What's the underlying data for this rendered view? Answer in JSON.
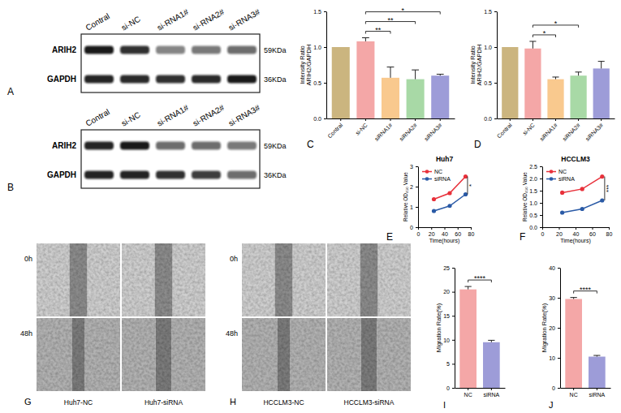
{
  "blots": [
    {
      "panel": "A",
      "lanes": [
        "Contral",
        "si-NC",
        "si-RNA1#",
        "si-RNA2#",
        "si-RNA3#"
      ],
      "rows": [
        {
          "protein": "ARIH2",
          "size": "59KDa"
        },
        {
          "protein": "GAPDH",
          "size": "36KDa"
        }
      ]
    },
    {
      "panel": "B",
      "lanes": [
        "Contral",
        "si-NC",
        "si-RNA1#",
        "si-RNA2#",
        "si-RNA3#"
      ],
      "rows": [
        {
          "protein": "ARIH2",
          "size": "59KDa"
        },
        {
          "protein": "GAPDH",
          "size": "36KDa"
        }
      ]
    }
  ],
  "chart_data": [
    {
      "type": "bar",
      "panel": "C",
      "y_label": "Intensity Ratio ARIH2/GAPDH",
      "categories": [
        "Contral",
        "si-NC",
        "siRNA1#",
        "siRNA2#",
        "siRNA3#"
      ],
      "values": [
        1.0,
        1.08,
        0.57,
        0.55,
        0.6
      ],
      "errors": [
        null,
        0.05,
        0.15,
        0.13,
        0.02
      ],
      "colors": [
        "#cbb57f",
        "#f4a7a7",
        "#f9c98e",
        "#a8d9a6",
        "#9d9cd8"
      ],
      "ylim": [
        0,
        1.5
      ],
      "yticks": [
        {
          "value": 0,
          "label": "0.0"
        },
        0.5,
        {
          "value": 1,
          "label": "1.0"
        },
        1.5
      ],
      "comparisons": [
        {
          "from": "si-NC",
          "to": "siRNA1#",
          "label": "**"
        },
        {
          "from": "si-NC",
          "to": "siRNA2#",
          "label": "**"
        },
        {
          "from": "si-NC",
          "to": "siRNA3#",
          "label": "*"
        }
      ]
    },
    {
      "type": "bar",
      "panel": "D",
      "y_label": "Intensity Ratio ARIH2/GAPDH",
      "categories": [
        "Contral",
        "si-NC",
        "siRNA1#",
        "siRNA2#",
        "siRNA3#"
      ],
      "values": [
        1.0,
        0.98,
        0.55,
        0.6,
        0.7
      ],
      "errors": [
        null,
        0.1,
        0.03,
        0.05,
        0.1
      ],
      "colors": [
        "#cbb57f",
        "#f4a7a7",
        "#f9c98e",
        "#a8d9a6",
        "#9d9cd8"
      ],
      "ylim": [
        0,
        1.5
      ],
      "yticks": [
        {
          "value": 0,
          "label": "0.0"
        },
        0.5,
        {
          "value": 1,
          "label": "1.0"
        },
        1.5
      ],
      "comparisons": [
        {
          "from": "si-NC",
          "to": "siRNA1#",
          "label": "*"
        },
        {
          "from": "si-NC",
          "to": "siRNA2#",
          "label": "*"
        }
      ]
    },
    {
      "type": "line",
      "panel": "E",
      "title": "Huh7",
      "x_label": "Time(hours)",
      "y_label": "Relative OD₄₅₀ Value",
      "x": [
        24,
        48,
        72
      ],
      "series": [
        {
          "name": "NC",
          "color": "#e8313b",
          "values": [
            1.38,
            1.68,
            2.5
          ]
        },
        {
          "name": "siRNA",
          "color": "#2a5aa6",
          "values": [
            0.8,
            1.05,
            1.62
          ]
        }
      ],
      "xlim": [
        0,
        80
      ],
      "xticks": [
        0,
        20,
        40,
        60,
        80
      ],
      "ylim": [
        0,
        3
      ],
      "yticks": [
        0,
        1,
        2,
        3
      ],
      "legend": "upper left",
      "marker": "circle",
      "annotations": [
        {
          "text": "*",
          "x": 75
        }
      ]
    },
    {
      "type": "line",
      "panel": "F",
      "title": "HCCLM3",
      "x_label": "Time(hours)",
      "y_label": "Relative OD₄₅₀ Value",
      "x": [
        24,
        48,
        72
      ],
      "series": [
        {
          "name": "NC",
          "color": "#e8313b",
          "values": [
            1.42,
            1.57,
            2.08
          ]
        },
        {
          "name": "siRNA",
          "color": "#2a5aa6",
          "values": [
            0.6,
            0.75,
            1.1
          ]
        }
      ],
      "xlim": [
        0,
        80
      ],
      "xticks": [
        0,
        20,
        40,
        60,
        80
      ],
      "ylim": [
        0,
        2.5
      ],
      "yticks": [
        {
          "value": 0,
          "label": "0.0"
        },
        0.5,
        {
          "value": 1,
          "label": "1.0"
        },
        1.5,
        {
          "value": 2,
          "label": "2.0"
        },
        2.5
      ],
      "legend": "upper left",
      "marker": "circle",
      "annotations": [
        {
          "text": "***",
          "x": 75
        }
      ]
    },
    {
      "type": "bar",
      "panel": "I",
      "y_label": "Migration Rate(%)",
      "categories": [
        "NC",
        "siRNA"
      ],
      "values": [
        20.5,
        9.5
      ],
      "errors": [
        0.6,
        0.4
      ],
      "colors": [
        "#f4a7a7",
        "#9d9cd8"
      ],
      "ylim": [
        0,
        25
      ],
      "yticks": [
        0,
        5,
        10,
        15,
        20,
        25
      ],
      "comparisons": [
        {
          "from": "NC",
          "to": "siRNA",
          "label": "****"
        }
      ]
    },
    {
      "type": "bar",
      "panel": "J",
      "y_label": "Migration Rate(%)",
      "categories": [
        "NC",
        "siRNA"
      ],
      "values": [
        29.6,
        10.4
      ],
      "errors": [
        0.5,
        0.4
      ],
      "colors": [
        "#f4a7a7",
        "#9d9cd8"
      ],
      "ylim": [
        0,
        40
      ],
      "yticks": [
        0,
        10,
        20,
        30,
        40
      ],
      "comparisons": [
        {
          "from": "NC",
          "to": "siRNA",
          "label": "****"
        }
      ]
    }
  ],
  "wound_healing": [
    {
      "panel": "G",
      "times": [
        "0h",
        "48h"
      ],
      "groups": [
        "Huh7-NC",
        "Huh7-siRNA"
      ]
    },
    {
      "panel": "H",
      "times": [
        "0h",
        "48h"
      ],
      "groups": [
        "HCCLM3-NC",
        "HCCLM3-siRNA"
      ]
    }
  ]
}
